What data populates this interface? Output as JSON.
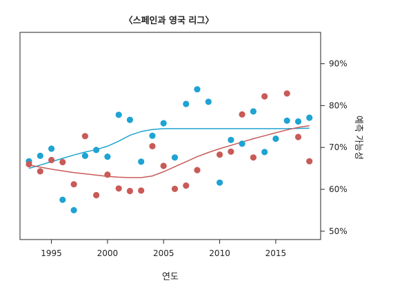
{
  "chart_data": {
    "type": "scatter",
    "title": "〈스페인과 영국 리그〉",
    "xlabel": "연도",
    "ylabel": "예측 가능성",
    "xlim": [
      1992.2,
      2019.0
    ],
    "ylim": [
      48,
      97.5
    ],
    "x_ticks": [
      1995,
      2000,
      2005,
      2010,
      2015
    ],
    "x_tick_labels": [
      "1995",
      "2000",
      "2005",
      "2010",
      "2015"
    ],
    "y_ticks": [
      50,
      60,
      70,
      80,
      90
    ],
    "y_tick_labels": [
      "50%",
      "60%",
      "70%",
      "80%",
      "90%"
    ],
    "y_axis_side": "right",
    "grid": false,
    "legend": "none",
    "series": [
      {
        "color": "#1ea3d3",
        "points": [
          [
            1993,
            66.7
          ],
          [
            1994,
            68.0
          ],
          [
            1995,
            69.7
          ],
          [
            1996,
            57.5
          ],
          [
            1997,
            55.0
          ],
          [
            1998,
            68.0
          ],
          [
            1999,
            69.4
          ],
          [
            2000,
            67.8
          ],
          [
            2001,
            77.8
          ],
          [
            2002,
            76.6
          ],
          [
            2003,
            66.6
          ],
          [
            2004,
            72.8
          ],
          [
            2005,
            75.8
          ],
          [
            2006,
            67.6
          ],
          [
            2007,
            80.4
          ],
          [
            2008,
            83.9
          ],
          [
            2009,
            80.9
          ],
          [
            2010,
            61.6
          ],
          [
            2011,
            71.8
          ],
          [
            2012,
            70.9
          ],
          [
            2013,
            78.6
          ],
          [
            2014,
            68.9
          ],
          [
            2015,
            72.1
          ],
          [
            2016,
            76.4
          ],
          [
            2017,
            76.2
          ],
          [
            2018,
            77.1
          ]
        ],
        "trend": [
          [
            1993,
            65.0
          ],
          [
            1994,
            65.8
          ],
          [
            1995,
            66.6
          ],
          [
            1996,
            67.4
          ],
          [
            1997,
            68.2
          ],
          [
            1998,
            68.9
          ],
          [
            1999,
            69.5
          ],
          [
            2000,
            70.3
          ],
          [
            2001,
            71.5
          ],
          [
            2002,
            72.9
          ],
          [
            2003,
            73.8
          ],
          [
            2004,
            74.3
          ],
          [
            2005,
            74.5
          ],
          [
            2006,
            74.5
          ],
          [
            2008,
            74.5
          ],
          [
            2010,
            74.5
          ],
          [
            2012,
            74.5
          ],
          [
            2014,
            74.5
          ],
          [
            2016,
            74.5
          ],
          [
            2018,
            74.6
          ]
        ]
      },
      {
        "color": "#c85a57",
        "points": [
          [
            1993,
            66.0
          ],
          [
            1994,
            64.3
          ],
          [
            1995,
            67.0
          ],
          [
            1996,
            66.5
          ],
          [
            1997,
            61.2
          ],
          [
            1998,
            72.7
          ],
          [
            1999,
            58.6
          ],
          [
            2000,
            63.5
          ],
          [
            2001,
            60.2
          ],
          [
            2002,
            59.6
          ],
          [
            2003,
            59.7
          ],
          [
            2004,
            70.3
          ],
          [
            2005,
            65.6
          ],
          [
            2006,
            60.1
          ],
          [
            2007,
            60.9
          ],
          [
            2008,
            64.6
          ],
          [
            2010,
            68.3
          ],
          [
            2011,
            69.0
          ],
          [
            2012,
            77.9
          ],
          [
            2013,
            67.6
          ],
          [
            2014,
            82.2
          ],
          [
            2016,
            82.9
          ],
          [
            2017,
            72.5
          ],
          [
            2018,
            66.7
          ]
        ],
        "trend": [
          [
            1993,
            65.8
          ],
          [
            1994,
            65.3
          ],
          [
            1995,
            64.8
          ],
          [
            1996,
            64.4
          ],
          [
            1997,
            64.0
          ],
          [
            1998,
            63.7
          ],
          [
            1999,
            63.4
          ],
          [
            2000,
            63.1
          ],
          [
            2001,
            62.9
          ],
          [
            2002,
            62.8
          ],
          [
            2003,
            62.8
          ],
          [
            2004,
            63.2
          ],
          [
            2005,
            64.2
          ],
          [
            2006,
            65.4
          ],
          [
            2007,
            66.6
          ],
          [
            2008,
            67.8
          ],
          [
            2009,
            68.8
          ],
          [
            2010,
            69.7
          ],
          [
            2011,
            70.5
          ],
          [
            2012,
            71.3
          ],
          [
            2013,
            72.1
          ],
          [
            2014,
            72.8
          ],
          [
            2015,
            73.5
          ],
          [
            2016,
            74.2
          ],
          [
            2017,
            74.8
          ],
          [
            2018,
            75.2
          ]
        ]
      }
    ]
  }
}
